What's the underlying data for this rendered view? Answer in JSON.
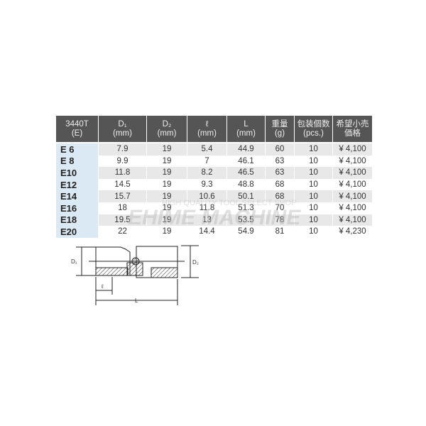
{
  "table": {
    "headers": [
      [
        "3440T",
        "(E)"
      ],
      [
        "D₁",
        "(mm)"
      ],
      [
        "D₂",
        "(mm)"
      ],
      [
        "ℓ",
        "(mm)"
      ],
      [
        "L",
        "(mm)"
      ],
      [
        "重量",
        "(g)"
      ],
      [
        "包装個数",
        "(pcs.)"
      ],
      [
        "希望小売",
        "価格"
      ]
    ],
    "rows": [
      [
        "E  6",
        "7.9",
        "19",
        "5.4",
        "44.9",
        "60",
        "10",
        "¥ 4,100"
      ],
      [
        "E  8",
        "9.9",
        "19",
        "7",
        "46.1",
        "63",
        "10",
        "¥ 4,100"
      ],
      [
        "E10",
        "11.8",
        "19",
        "8.2",
        "46.5",
        "63",
        "10",
        "¥ 4,100"
      ],
      [
        "E12",
        "14.5",
        "19",
        "9.3",
        "48.8",
        "68",
        "10",
        "¥ 4,100"
      ],
      [
        "E14",
        "15.7",
        "19",
        "10.6",
        "50.1",
        "68",
        "10",
        "¥ 4,100"
      ],
      [
        "E16",
        "18",
        "19",
        "11.8",
        "51.3",
        "70",
        "10",
        "¥ 4,100"
      ],
      [
        "E18",
        "19.5",
        "19",
        "13",
        "53.5",
        "78",
        "10",
        "¥ 4,100"
      ],
      [
        "E20",
        "22",
        "19",
        "14.4",
        "54.9",
        "81",
        "10",
        "¥ 4,230"
      ]
    ]
  },
  "watermark": {
    "line1": "HIGH QUALITY TOOL SELECT SHOP",
    "line2": "EHIME MACHINE"
  },
  "drawing": {
    "d1": "D₁",
    "d2": "D₂",
    "l_small": "ℓ",
    "l_total": "L"
  }
}
